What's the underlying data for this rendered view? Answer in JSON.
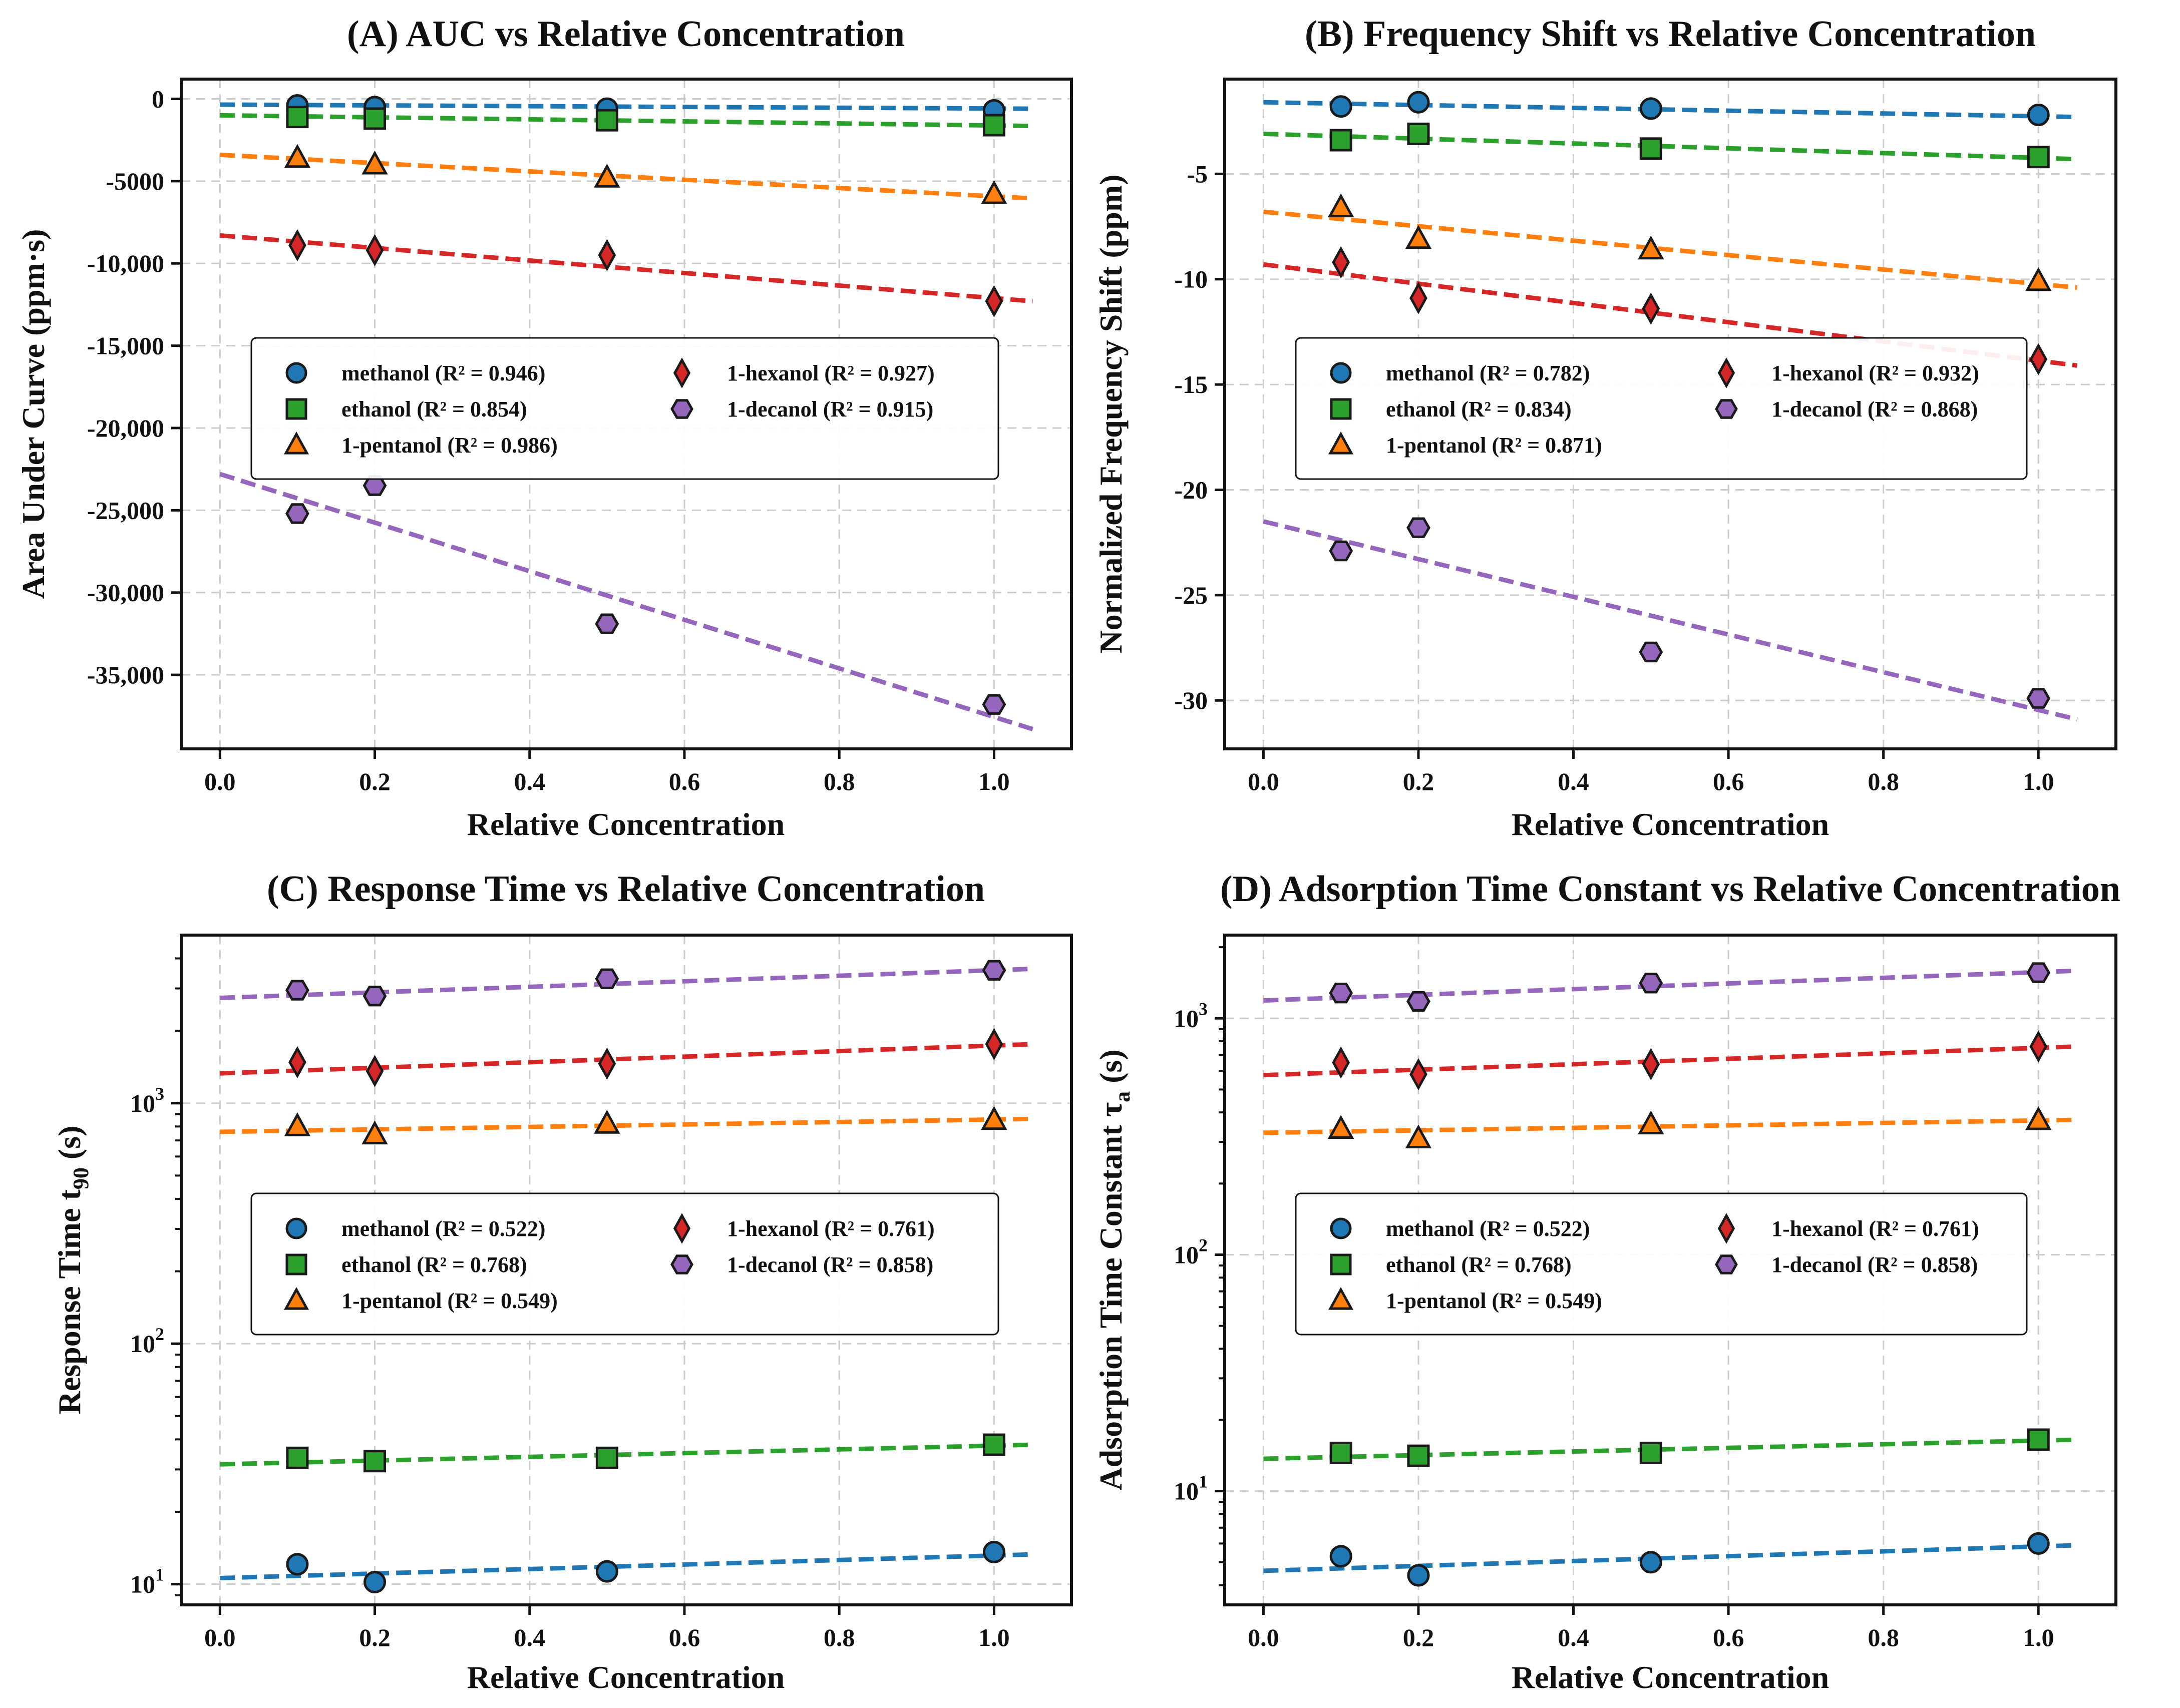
{
  "colors": {
    "methanol": "#1f77b4",
    "ethanol": "#2ca02c",
    "1-pentanol": "#ff7f0e",
    "1-hexanol": "#d62728",
    "1-decanol": "#9467bd"
  },
  "chart_data": [
    {
      "id": "A",
      "type": "scatter",
      "title": "(A) AUC vs Relative Concentration",
      "xlabel": "Relative Concentration",
      "ylabel": "Area Under Curve (ppm·s)",
      "yscale": "linear",
      "xlim": [
        -0.05,
        1.1
      ],
      "ylim": [
        -39500,
        1200
      ],
      "xticks": [
        {
          "v": 0.0,
          "label": "0.0"
        },
        {
          "v": 0.2,
          "label": "0.2"
        },
        {
          "v": 0.4,
          "label": "0.4"
        },
        {
          "v": 0.6,
          "label": "0.6"
        },
        {
          "v": 0.8,
          "label": "0.8"
        },
        {
          "v": 1.0,
          "label": "1.0"
        }
      ],
      "yticks": [
        {
          "v": 0,
          "label": "0"
        },
        {
          "v": -5000,
          "label": "-5000"
        },
        {
          "v": -10000,
          "label": "-10,000"
        },
        {
          "v": -15000,
          "label": "-15,000"
        },
        {
          "v": -20000,
          "label": "-20,000"
        },
        {
          "v": -25000,
          "label": "-25,000"
        },
        {
          "v": -30000,
          "label": "-30,000"
        },
        {
          "v": -35000,
          "label": "-35,000"
        }
      ],
      "grid": true,
      "legend": {
        "position": "center-left",
        "ncol": 2
      },
      "x": [
        0.1,
        0.2,
        0.5,
        1.0
      ],
      "series": [
        {
          "name": "methanol",
          "label": "methanol (R² = 0.946)",
          "marker": "circle",
          "values": [
            -400,
            -500,
            -600,
            -700
          ],
          "fit": [
            -350,
            -600
          ]
        },
        {
          "name": "ethanol",
          "label": "ethanol (R² = 0.854)",
          "marker": "square",
          "values": [
            -1100,
            -1200,
            -1300,
            -1600
          ],
          "fit": [
            -1000,
            -1650
          ]
        },
        {
          "name": "1-pentanol",
          "label": "1-pentanol (R² = 0.986)",
          "marker": "triangle",
          "values": [
            -3600,
            -4000,
            -4800,
            -5800
          ],
          "fit": [
            -3400,
            -6050
          ]
        },
        {
          "name": "1-hexanol",
          "label": "1-hexanol (R² = 0.927)",
          "marker": "diamond",
          "values": [
            -8900,
            -9200,
            -9500,
            -12300
          ],
          "fit": [
            -8300,
            -12300
          ]
        },
        {
          "name": "1-decanol",
          "label": "1-decanol (R² = 0.915)",
          "marker": "hexagon",
          "values": [
            -25200,
            -23500,
            -31900,
            -36800
          ],
          "fit": [
            -22800,
            -38300
          ]
        }
      ]
    },
    {
      "id": "B",
      "type": "scatter",
      "title": "(B) Frequency Shift vs Relative Concentration",
      "xlabel": "Relative Concentration",
      "ylabel": "Normalized Frequency Shift (ppm)",
      "yscale": "linear",
      "xlim": [
        -0.05,
        1.1
      ],
      "ylim": [
        -32.3,
        -0.5
      ],
      "xticks": [
        {
          "v": 0.0,
          "label": "0.0"
        },
        {
          "v": 0.2,
          "label": "0.2"
        },
        {
          "v": 0.4,
          "label": "0.4"
        },
        {
          "v": 0.6,
          "label": "0.6"
        },
        {
          "v": 0.8,
          "label": "0.8"
        },
        {
          "v": 1.0,
          "label": "1.0"
        }
      ],
      "yticks": [
        {
          "v": -5,
          "label": "-5"
        },
        {
          "v": -10,
          "label": "-10"
        },
        {
          "v": -15,
          "label": "-15"
        },
        {
          "v": -20,
          "label": "-20"
        },
        {
          "v": -25,
          "label": "-25"
        },
        {
          "v": -30,
          "label": "-30"
        }
      ],
      "grid": true,
      "legend": {
        "position": "center-right",
        "ncol": 2
      },
      "x": [
        0.1,
        0.2,
        0.5,
        1.0
      ],
      "series": [
        {
          "name": "methanol",
          "label": "methanol (R² = 0.782)",
          "marker": "circle",
          "values": [
            -1.8,
            -1.6,
            -1.9,
            -2.2
          ],
          "fit": [
            -1.6,
            -2.3
          ]
        },
        {
          "name": "ethanol",
          "label": "ethanol (R² = 0.834)",
          "marker": "square",
          "values": [
            -3.4,
            -3.1,
            -3.8,
            -4.2
          ],
          "fit": [
            -3.1,
            -4.3
          ]
        },
        {
          "name": "1-pentanol",
          "label": "1-pentanol (R² = 0.871)",
          "marker": "triangle",
          "values": [
            -6.6,
            -8.1,
            -8.6,
            -10.1
          ],
          "fit": [
            -6.8,
            -10.4
          ]
        },
        {
          "name": "1-hexanol",
          "label": "1-hexanol (R² = 0.932)",
          "marker": "diamond",
          "values": [
            -9.2,
            -10.9,
            -11.4,
            -13.8
          ],
          "fit": [
            -9.3,
            -14.1
          ]
        },
        {
          "name": "1-decanol",
          "label": "1-decanol (R² = 0.868)",
          "marker": "hexagon",
          "values": [
            -22.9,
            -21.8,
            -27.7,
            -29.9
          ],
          "fit": [
            -21.5,
            -30.9
          ]
        }
      ]
    },
    {
      "id": "C",
      "type": "scatter",
      "title": "(C) Response Time vs Relative Concentration",
      "xlabel": "Relative Concentration",
      "ylabel": "Response Time t",
      "ylabel_sub": "90",
      "ylabel_suffix": " (s)",
      "yscale": "log",
      "xlim": [
        -0.05,
        1.1
      ],
      "ylim": [
        8.2,
        5000
      ],
      "xticks": [
        {
          "v": 0.0,
          "label": "0.0"
        },
        {
          "v": 0.2,
          "label": "0.2"
        },
        {
          "v": 0.4,
          "label": "0.4"
        },
        {
          "v": 0.6,
          "label": "0.6"
        },
        {
          "v": 0.8,
          "label": "0.8"
        },
        {
          "v": 1.0,
          "label": "1.0"
        }
      ],
      "yticks": [
        {
          "v": 10,
          "base": "10",
          "exp": "1"
        },
        {
          "v": 100,
          "base": "10",
          "exp": "2"
        },
        {
          "v": 1000,
          "base": "10",
          "exp": "3"
        }
      ],
      "grid": true,
      "legend": {
        "position": "center-right",
        "ncol": 2
      },
      "x": [
        0.1,
        0.2,
        0.5,
        1.0
      ],
      "series": [
        {
          "name": "methanol",
          "label": "methanol (R² = 0.522)",
          "marker": "circle",
          "values": [
            12.1,
            10.2,
            11.3,
            13.6
          ],
          "fit": [
            10.6,
            13.3
          ]
        },
        {
          "name": "ethanol",
          "label": "ethanol (R² = 0.768)",
          "marker": "square",
          "values": [
            33.5,
            32.5,
            33.5,
            38.0
          ],
          "fit": [
            31.5,
            38.0
          ]
        },
        {
          "name": "1-pentanol",
          "label": "1-pentanol (R² = 0.549)",
          "marker": "triangle",
          "values": [
            800,
            740,
            820,
            850
          ],
          "fit": [
            760,
            860
          ]
        },
        {
          "name": "1-hexanol",
          "label": "1-hexanol (R² = 0.761)",
          "marker": "diamond",
          "values": [
            1480,
            1360,
            1460,
            1760
          ],
          "fit": [
            1330,
            1760
          ]
        },
        {
          "name": "1-decanol",
          "label": "1-decanol (R² = 0.858)",
          "marker": "hexagon",
          "values": [
            2950,
            2790,
            3290,
            3570
          ],
          "fit": [
            2740,
            3620
          ]
        }
      ]
    },
    {
      "id": "D",
      "type": "scatter",
      "title": "(D) Adsorption Time Constant vs Relative Concentration",
      "xlabel": "Relative Concentration",
      "ylabel": "Adsorption Time Constant τ",
      "ylabel_sub": "a",
      "ylabel_suffix": " (s)",
      "yscale": "log",
      "xlim": [
        -0.05,
        1.1
      ],
      "ylim": [
        3.3,
        2250
      ],
      "xticks": [
        {
          "v": 0.0,
          "label": "0.0"
        },
        {
          "v": 0.2,
          "label": "0.2"
        },
        {
          "v": 0.4,
          "label": "0.4"
        },
        {
          "v": 0.6,
          "label": "0.6"
        },
        {
          "v": 0.8,
          "label": "0.8"
        },
        {
          "v": 1.0,
          "label": "1.0"
        }
      ],
      "yticks": [
        {
          "v": 10,
          "base": "10",
          "exp": "1"
        },
        {
          "v": 100,
          "base": "10",
          "exp": "2"
        },
        {
          "v": 1000,
          "base": "10",
          "exp": "3"
        }
      ],
      "grid": true,
      "legend": {
        "position": "center-right",
        "ncol": 2
      },
      "x": [
        0.1,
        0.2,
        0.5,
        1.0
      ],
      "series": [
        {
          "name": "methanol",
          "label": "methanol (R² = 0.522)",
          "marker": "circle",
          "values": [
            5.3,
            4.4,
            5.0,
            6.0
          ],
          "fit": [
            4.6,
            5.9
          ]
        },
        {
          "name": "ethanol",
          "label": "ethanol (R² = 0.768)",
          "marker": "square",
          "values": [
            14.5,
            14.1,
            14.5,
            16.5
          ],
          "fit": [
            13.7,
            16.5
          ]
        },
        {
          "name": "1-pentanol",
          "label": "1-pentanol (R² = 0.549)",
          "marker": "triangle",
          "values": [
            340,
            310,
            355,
            370
          ],
          "fit": [
            328,
            372
          ]
        },
        {
          "name": "1-hexanol",
          "label": "1-hexanol (R² = 0.761)",
          "marker": "diamond",
          "values": [
            650,
            580,
            640,
            760
          ],
          "fit": [
            575,
            760
          ]
        },
        {
          "name": "1-decanol",
          "label": "1-decanol (R² = 0.858)",
          "marker": "hexagon",
          "values": [
            1280,
            1180,
            1410,
            1560
          ],
          "fit": [
            1190,
            1590
          ]
        }
      ]
    }
  ]
}
